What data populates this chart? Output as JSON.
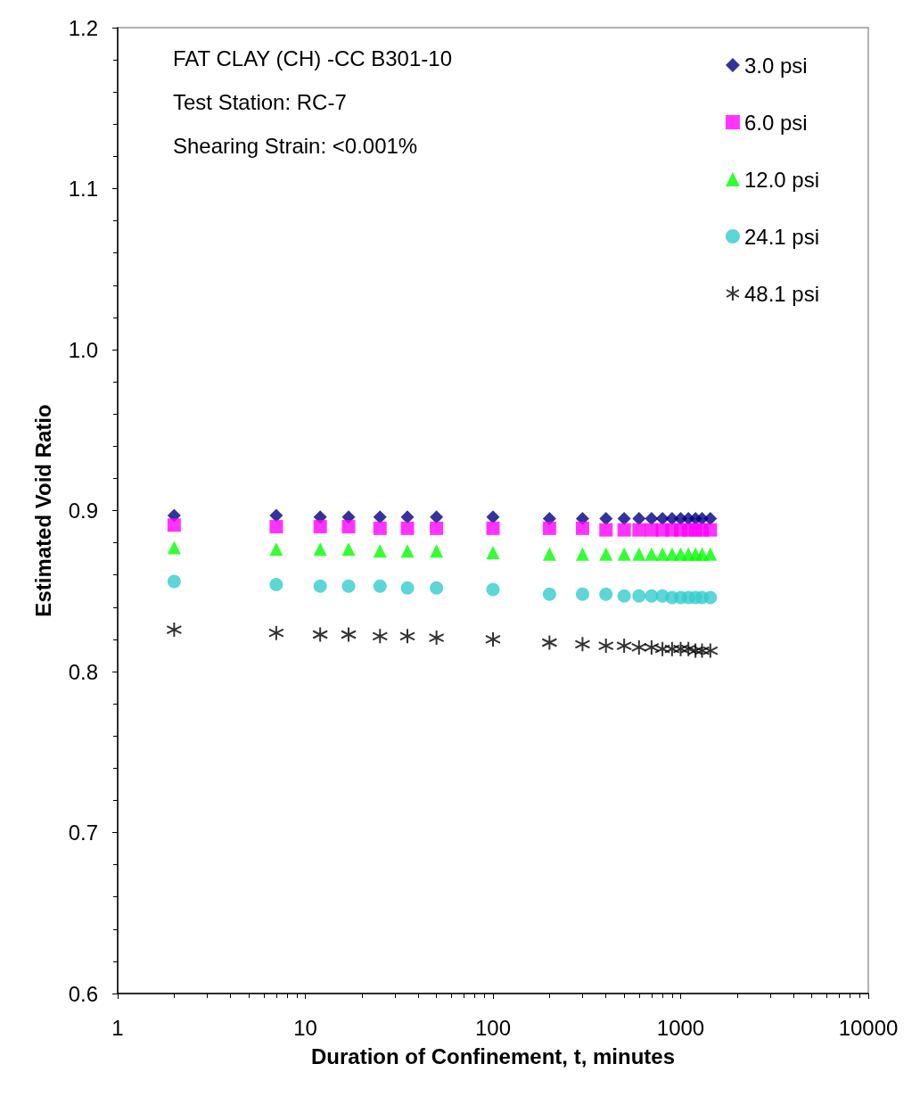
{
  "chart_data": {
    "type": "scatter",
    "xlabel": "Duration of Confinement, t, minutes",
    "ylabel": "Estimated Void Ratio",
    "annotations": [
      "FAT CLAY (CH) -CC B301-10",
      "Test Station: RC-7",
      "Shearing Strain: <0.001%"
    ],
    "x": [
      2,
      7,
      12,
      17,
      25,
      35,
      50,
      100,
      200,
      300,
      400,
      500,
      600,
      700,
      800,
      900,
      1000,
      1100,
      1200,
      1300,
      1440
    ],
    "series": [
      {
        "name": "3.0 psi",
        "color": "#000080",
        "marker": "diamond",
        "values": [
          0.897,
          0.897,
          0.896,
          0.896,
          0.896,
          0.896,
          0.896,
          0.896,
          0.895,
          0.895,
          0.895,
          0.895,
          0.895,
          0.895,
          0.895,
          0.895,
          0.895,
          0.895,
          0.895,
          0.895,
          0.895
        ]
      },
      {
        "name": "6.0 psi",
        "color": "#ff00ff",
        "marker": "square",
        "values": [
          0.891,
          0.89,
          0.89,
          0.89,
          0.889,
          0.889,
          0.889,
          0.889,
          0.889,
          0.889,
          0.888,
          0.888,
          0.888,
          0.888,
          0.888,
          0.888,
          0.888,
          0.888,
          0.888,
          0.888,
          0.888
        ]
      },
      {
        "name": "12.0 psi",
        "color": "#00ff00",
        "marker": "triangle",
        "values": [
          0.877,
          0.876,
          0.876,
          0.876,
          0.875,
          0.875,
          0.875,
          0.874,
          0.873,
          0.873,
          0.873,
          0.873,
          0.873,
          0.873,
          0.873,
          0.873,
          0.873,
          0.873,
          0.873,
          0.873,
          0.873
        ]
      },
      {
        "name": "24.1 psi",
        "color": "#33cccc",
        "marker": "circle",
        "values": [
          0.856,
          0.854,
          0.853,
          0.853,
          0.853,
          0.852,
          0.852,
          0.851,
          0.848,
          0.848,
          0.848,
          0.847,
          0.847,
          0.847,
          0.847,
          0.846,
          0.846,
          0.846,
          0.846,
          0.846,
          0.846
        ]
      },
      {
        "name": "48.1 psi",
        "color": "#000000",
        "marker": "cross",
        "values": [
          0.826,
          0.824,
          0.823,
          0.823,
          0.822,
          0.822,
          0.821,
          0.82,
          0.818,
          0.817,
          0.816,
          0.816,
          0.815,
          0.815,
          0.814,
          0.814,
          0.814,
          0.814,
          0.813,
          0.813,
          0.813
        ]
      }
    ],
    "log": "x",
    "xlim": [
      1,
      10000
    ],
    "xticks": [
      1,
      10,
      100,
      1000,
      10000
    ],
    "ylim": [
      0.6,
      1.2
    ],
    "yticks": [
      0.6,
      0.7,
      0.8,
      0.9,
      {
        "value": 1,
        "label": "1.0"
      },
      1.1,
      1.2
    ],
    "grid": false,
    "legend": "top right"
  }
}
